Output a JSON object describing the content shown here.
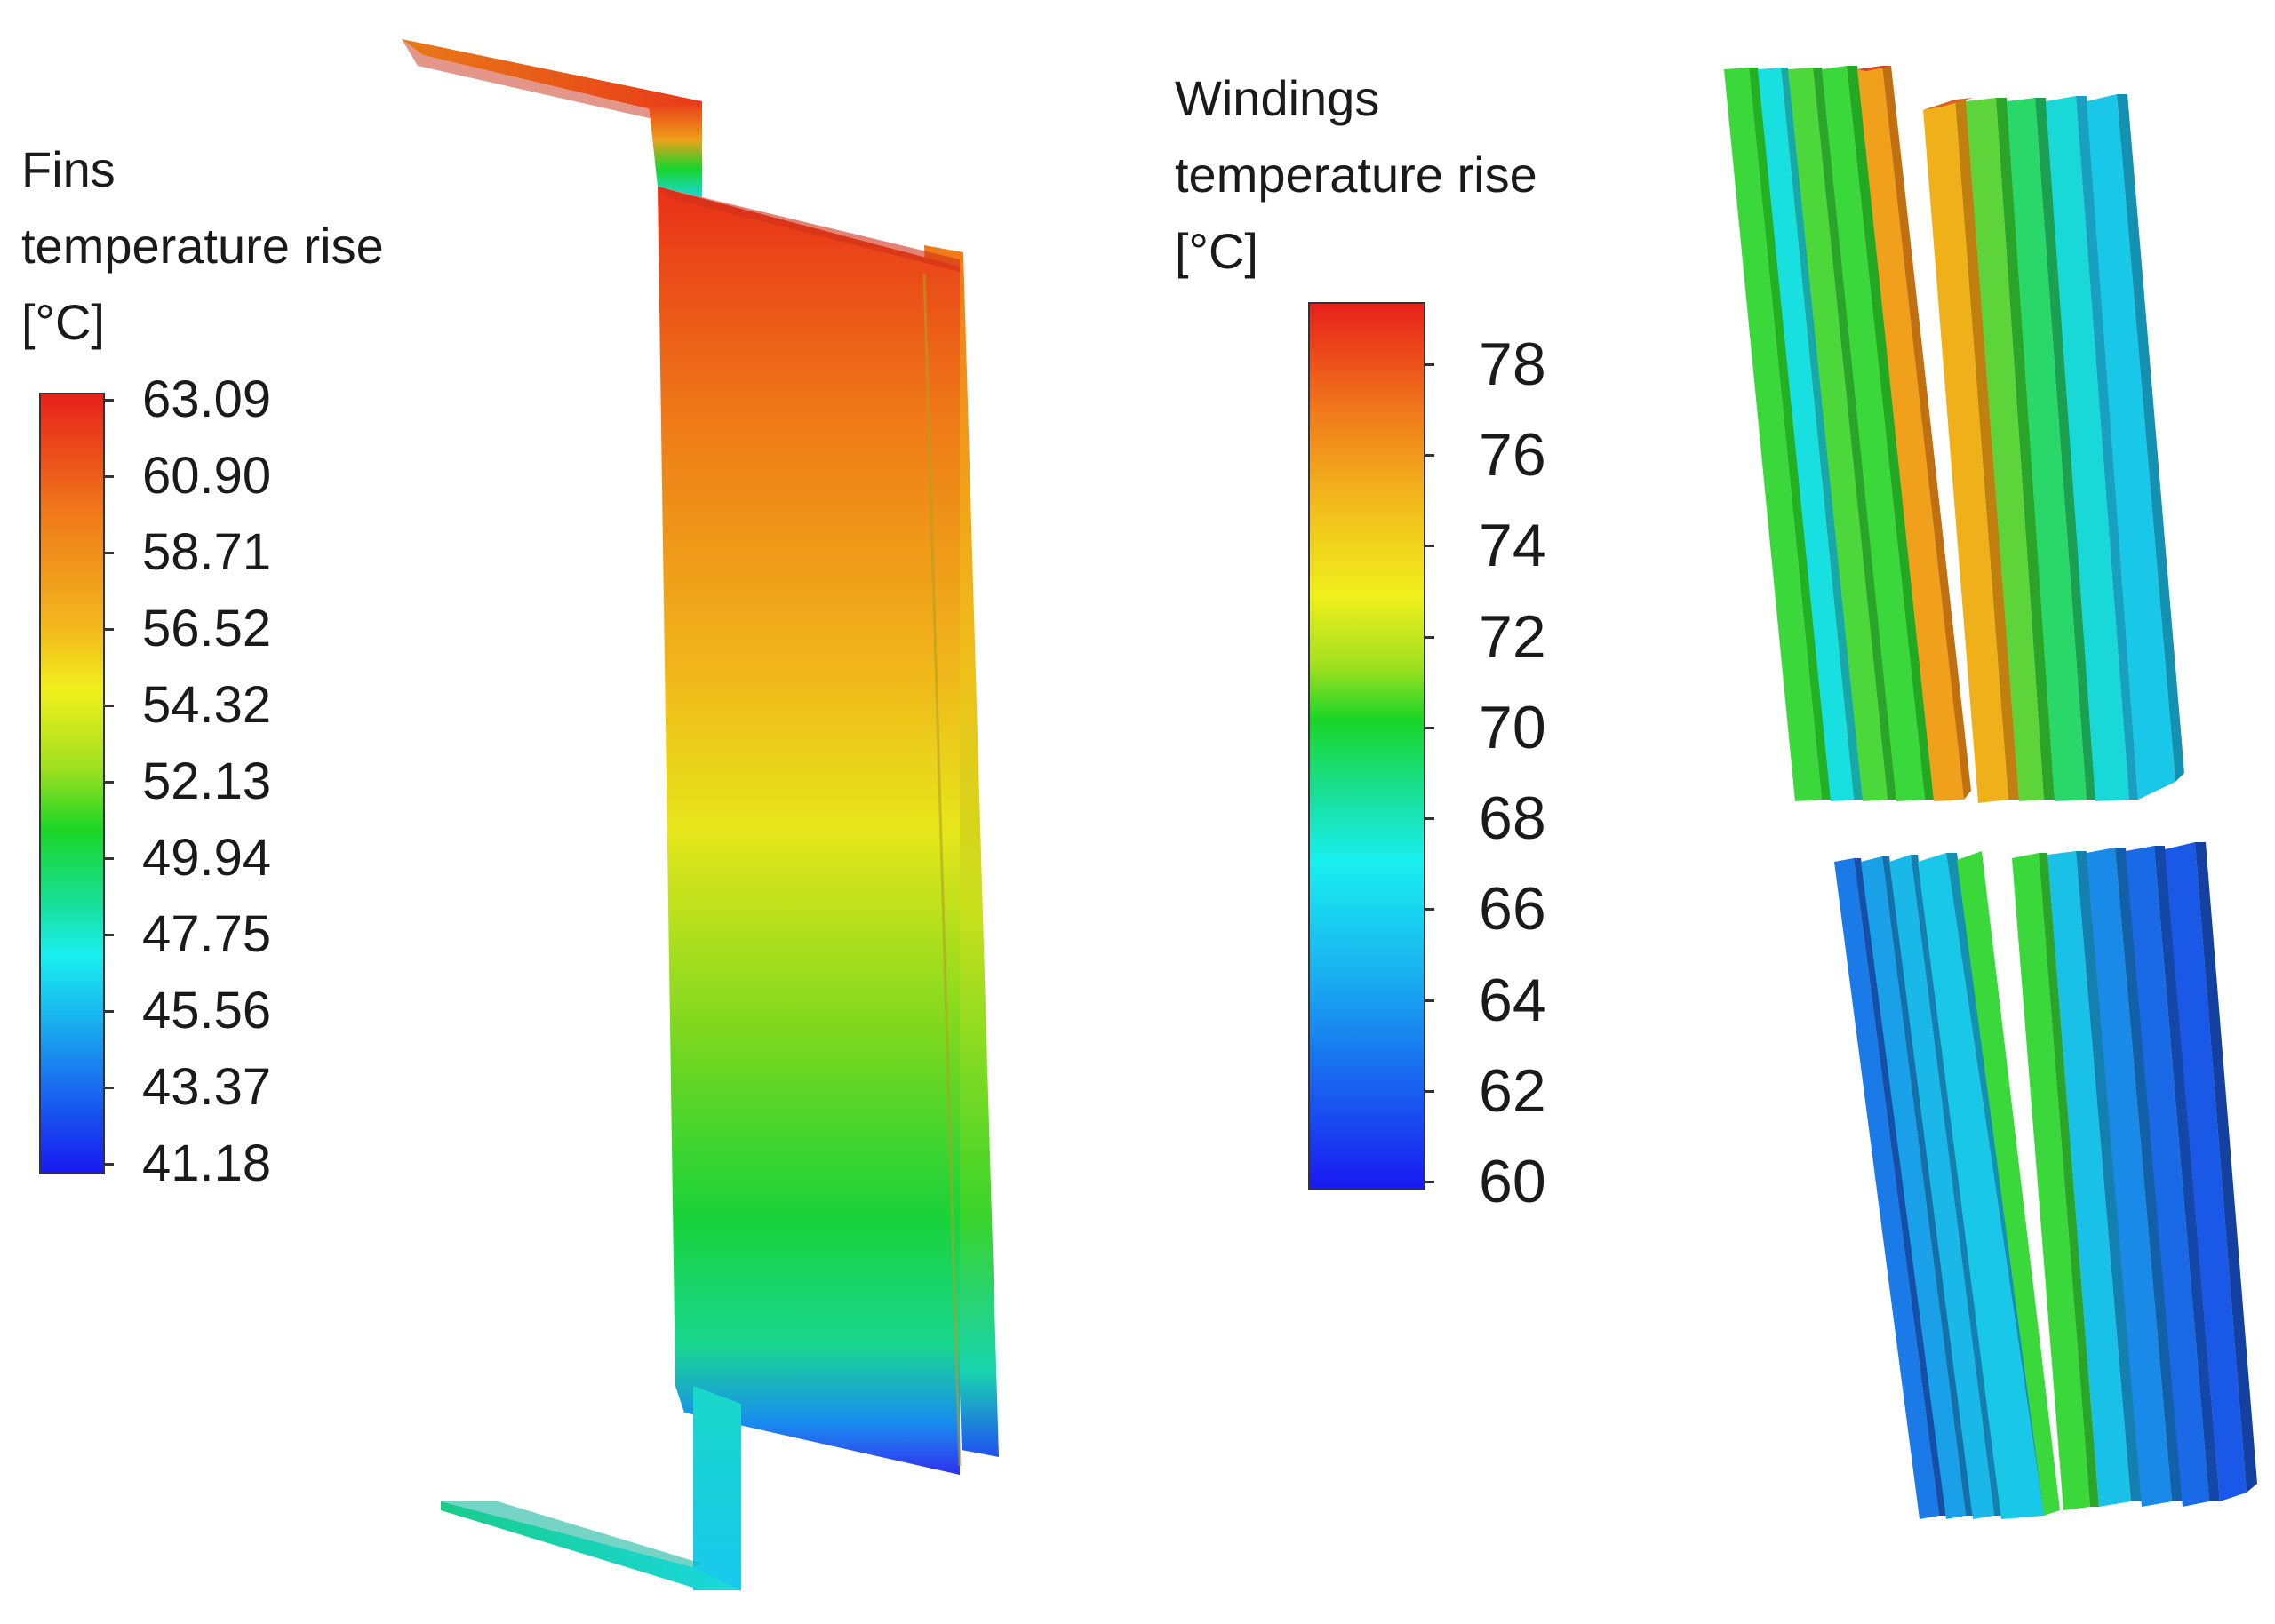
{
  "fins_legend": {
    "title": "Fins\ntemperature rise\n[°C]",
    "ticks": [
      "63.09",
      "60.90",
      "58.71",
      "56.52",
      "54.32",
      "52.13",
      "49.94",
      "47.75",
      "45.56",
      "43.37",
      "41.18"
    ]
  },
  "windings_legend": {
    "title": "Windings\ntemperature rise\n[°C]",
    "ticks": [
      "78",
      "76",
      "74",
      "72",
      "70",
      "68",
      "66",
      "64",
      "62",
      "60"
    ]
  },
  "colors": {
    "red": "#e8211b",
    "orange": "#f0781a",
    "yellow": "#f0f01c",
    "green": "#19d626",
    "cyan": "#19f0f0",
    "blue": "#1964f0",
    "deep_blue": "#1919f0"
  }
}
